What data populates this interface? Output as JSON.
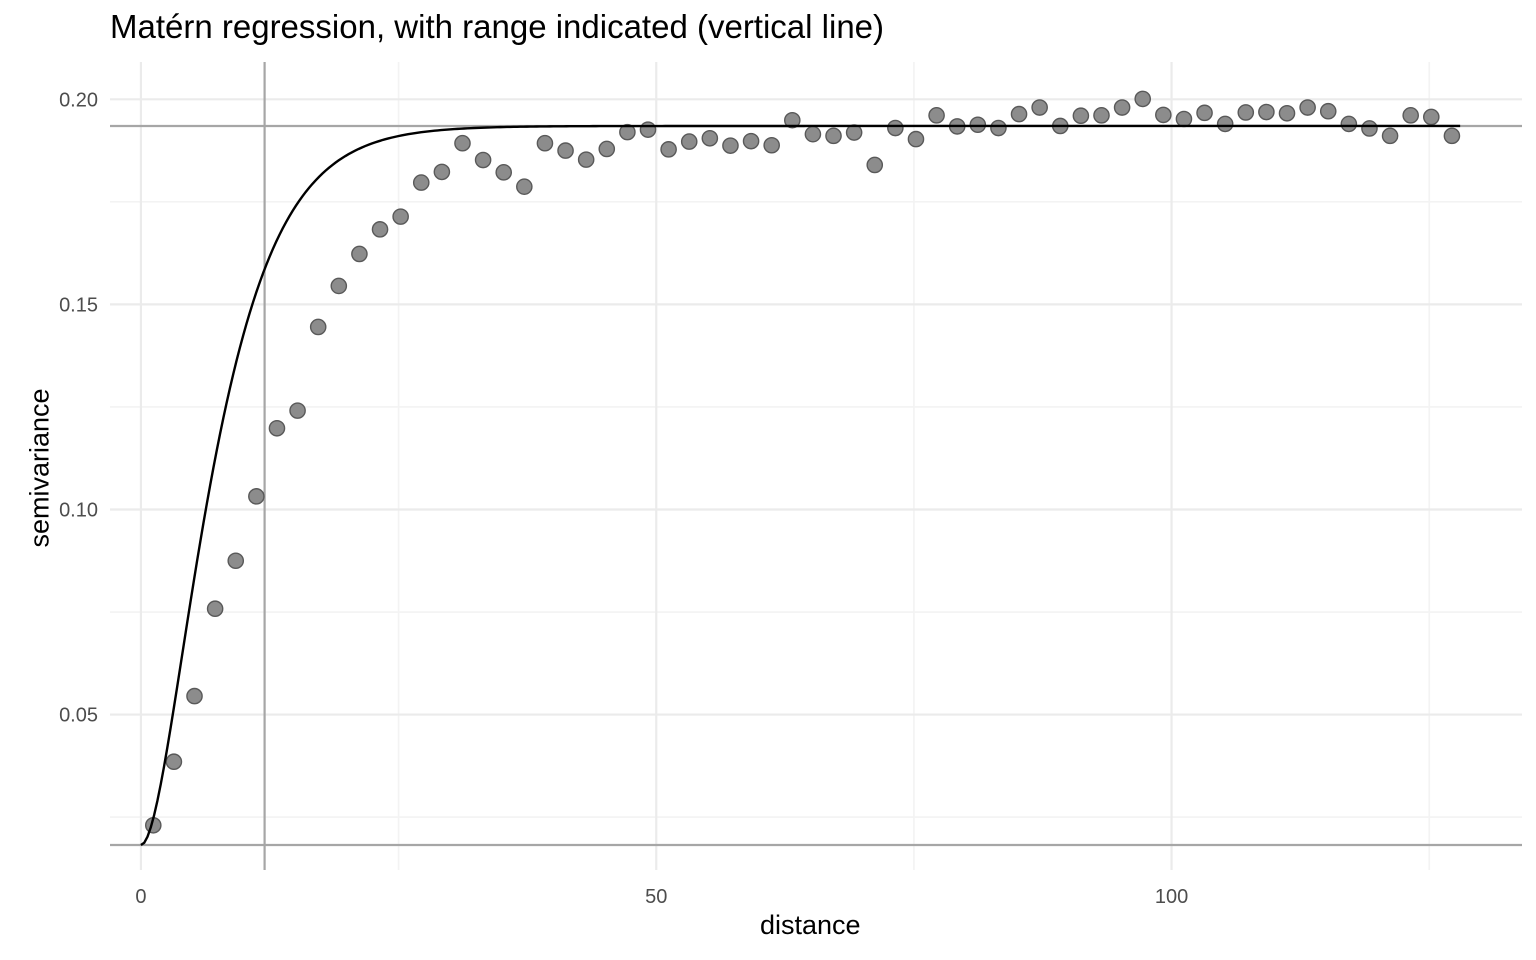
{
  "chart_data": {
    "type": "scatter",
    "title": "Matérn regression, with range indicated (vertical line)",
    "xlabel": "distance",
    "ylabel": "semivariance",
    "xlim": [
      -3,
      134
    ],
    "ylim": [
      0.0121,
      0.2091
    ],
    "x_ticks": [
      0,
      50,
      100
    ],
    "y_ticks": [
      0.05,
      0.1,
      0.15,
      0.2
    ],
    "grid": true,
    "colors": {
      "points": "#8c8c8c",
      "point_stroke": "#595959",
      "curve": "#000000",
      "ref_lines": "#a6a6a6",
      "grid_major": "#ebebeb",
      "grid_minor": "#f3f3f3"
    },
    "series": [
      {
        "type": "scatter",
        "x": [
          1.2,
          3.2,
          5.2,
          7.2,
          9.2,
          11.2,
          13.2,
          15.2,
          17.2,
          19.2,
          21.2,
          23.2,
          25.2,
          27.2,
          29.2,
          31.2,
          33.2,
          35.2,
          37.2,
          39.2,
          41.2,
          43.2,
          45.2,
          47.2,
          49.2,
          51.2,
          53.2,
          55.2,
          57.2,
          59.2,
          61.2,
          63.2,
          65.2,
          67.2,
          69.2,
          71.2,
          73.2,
          75.2,
          77.2,
          79.2,
          81.2,
          83.2,
          85.2,
          87.2,
          89.2,
          91.2,
          93.2,
          95.2,
          97.2,
          99.2,
          101.2,
          103.2,
          105.2,
          107.2,
          109.2,
          111.2,
          113.2,
          115.2,
          117.2,
          119.2,
          121.2,
          123.2,
          125.2,
          127.2
        ],
        "y": [
          0.023,
          0.0385,
          0.0545,
          0.0758,
          0.0875,
          0.1032,
          0.1198,
          0.1241,
          0.1445,
          0.1545,
          0.1623,
          0.1683,
          0.1714,
          0.1797,
          0.1823,
          0.1893,
          0.1852,
          0.1822,
          0.1787,
          0.1893,
          0.1875,
          0.1853,
          0.1879,
          0.192,
          0.1926,
          0.1878,
          0.1897,
          0.1905,
          0.1887,
          0.1898,
          0.1888,
          0.1949,
          0.1915,
          0.1911,
          0.1919,
          0.184,
          0.193,
          0.1903,
          0.1961,
          0.1934,
          0.1938,
          0.193,
          0.1964,
          0.198,
          0.1935,
          0.196,
          0.1961,
          0.198,
          0.2001,
          0.1962,
          0.1952,
          0.1967,
          0.194,
          0.1968,
          0.1969,
          0.1966,
          0.198,
          0.1971,
          0.194,
          0.1929,
          0.1911,
          0.1961,
          0.1957,
          0.1911
        ]
      },
      {
        "type": "line",
        "model": "matern",
        "nugget": 0.0182,
        "sill": 0.1935,
        "range": 12,
        "x_max": 128
      }
    ],
    "reference_lines": {
      "vertical_x": 12,
      "horizontal_y": [
        0.1935,
        0.0182
      ]
    }
  }
}
